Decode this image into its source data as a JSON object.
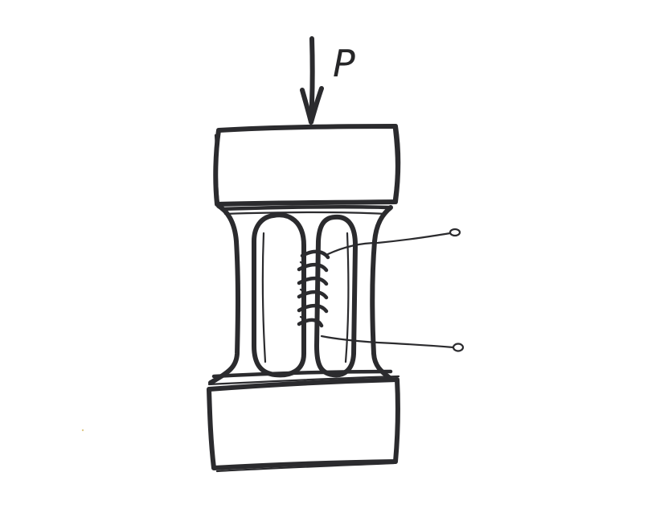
{
  "diagram": {
    "load_label": "P"
  },
  "colors": {
    "ink": "#2b2b2e",
    "paper": "#ffffff"
  }
}
